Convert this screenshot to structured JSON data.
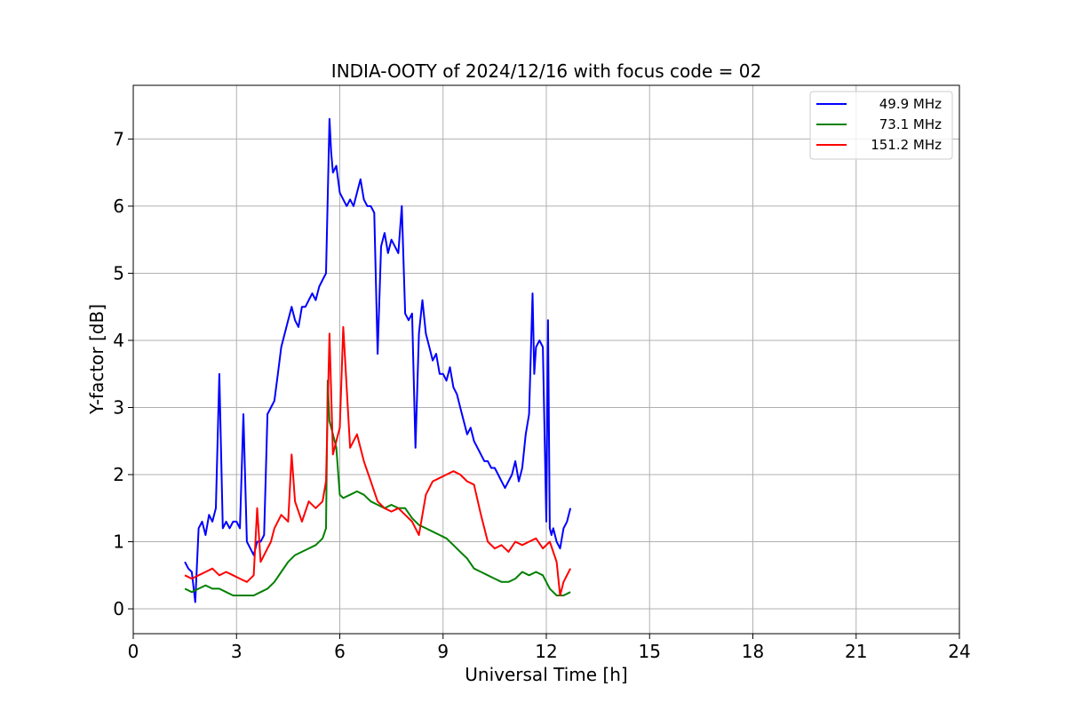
{
  "chart_data": {
    "type": "line",
    "title": "INDIA-OOTY of 2024/12/16 with focus code = 02",
    "xlabel": "Universal Time [h]",
    "ylabel": "Y-factor [dB]",
    "xlim": [
      0,
      24
    ],
    "ylim": [
      -0.37,
      7.8
    ],
    "xticks": [
      "0",
      "3",
      "6",
      "9",
      "12",
      "15",
      "18",
      "21",
      "24"
    ],
    "yticks": [
      "0",
      "1",
      "2",
      "3",
      "4",
      "5",
      "6",
      "7"
    ],
    "grid": true,
    "legend_position": "top-right",
    "series": [
      {
        "name": "49.9 MHz",
        "color": "#0000ff",
        "x": [
          1.5,
          1.6,
          1.7,
          1.8,
          1.9,
          2.0,
          2.1,
          2.2,
          2.3,
          2.4,
          2.5,
          2.6,
          2.7,
          2.8,
          2.9,
          3.0,
          3.1,
          3.2,
          3.3,
          3.4,
          3.5,
          3.6,
          3.7,
          3.8,
          3.9,
          4.0,
          4.1,
          4.2,
          4.3,
          4.4,
          4.5,
          4.6,
          4.7,
          4.8,
          4.9,
          5.0,
          5.1,
          5.2,
          5.3,
          5.4,
          5.5,
          5.6,
          5.7,
          5.75,
          5.8,
          5.9,
          6.0,
          6.1,
          6.2,
          6.3,
          6.4,
          6.5,
          6.6,
          6.7,
          6.8,
          6.9,
          7.0,
          7.1,
          7.2,
          7.3,
          7.4,
          7.5,
          7.6,
          7.7,
          7.8,
          7.9,
          8.0,
          8.1,
          8.2,
          8.3,
          8.4,
          8.5,
          8.6,
          8.7,
          8.8,
          8.9,
          9.0,
          9.1,
          9.2,
          9.3,
          9.4,
          9.5,
          9.6,
          9.7,
          9.8,
          9.9,
          10.0,
          10.1,
          10.2,
          10.3,
          10.4,
          10.5,
          10.6,
          10.7,
          10.8,
          10.9,
          11.0,
          11.1,
          11.2,
          11.3,
          11.4,
          11.5,
          11.6,
          11.65,
          11.7,
          11.8,
          11.9,
          12.0,
          12.05,
          12.1,
          12.15,
          12.2,
          12.3,
          12.4,
          12.5,
          12.6,
          12.7
        ],
        "y": [
          0.7,
          0.6,
          0.55,
          0.1,
          1.2,
          1.3,
          1.1,
          1.4,
          1.3,
          1.5,
          3.5,
          1.2,
          1.3,
          1.2,
          1.3,
          1.3,
          1.2,
          2.9,
          1.0,
          0.9,
          0.8,
          1.0,
          1.0,
          1.1,
          2.9,
          3.0,
          3.1,
          3.5,
          3.9,
          4.1,
          4.3,
          4.5,
          4.3,
          4.2,
          4.5,
          4.5,
          4.6,
          4.7,
          4.6,
          4.8,
          4.9,
          5.0,
          7.3,
          6.8,
          6.5,
          6.6,
          6.2,
          6.1,
          6.0,
          6.1,
          6.0,
          6.2,
          6.4,
          6.1,
          6.0,
          6.0,
          5.9,
          3.8,
          5.4,
          5.6,
          5.3,
          5.5,
          5.4,
          5.3,
          6.0,
          4.4,
          4.3,
          4.4,
          2.4,
          4.1,
          4.6,
          4.1,
          3.9,
          3.7,
          3.8,
          3.5,
          3.5,
          3.4,
          3.6,
          3.3,
          3.2,
          3.0,
          2.8,
          2.6,
          2.7,
          2.5,
          2.4,
          2.3,
          2.2,
          2.2,
          2.1,
          2.1,
          2.0,
          1.9,
          1.8,
          1.9,
          2.0,
          2.2,
          1.9,
          2.1,
          2.6,
          2.9,
          4.7,
          3.5,
          3.9,
          4.0,
          3.9,
          1.3,
          4.3,
          1.2,
          1.1,
          1.2,
          1.0,
          0.9,
          1.2,
          1.3,
          1.5
        ]
      },
      {
        "name": "73.1 MHz",
        "color": "#008000",
        "x": [
          1.5,
          1.7,
          1.9,
          2.1,
          2.3,
          2.5,
          2.7,
          2.9,
          3.1,
          3.3,
          3.5,
          3.7,
          3.9,
          4.1,
          4.3,
          4.5,
          4.7,
          4.9,
          5.1,
          5.3,
          5.5,
          5.6,
          5.65,
          5.7,
          5.8,
          5.9,
          6.0,
          6.1,
          6.3,
          6.5,
          6.7,
          6.9,
          7.1,
          7.3,
          7.5,
          7.7,
          7.9,
          8.1,
          8.3,
          8.5,
          8.7,
          8.9,
          9.1,
          9.3,
          9.5,
          9.7,
          9.9,
          10.1,
          10.3,
          10.5,
          10.7,
          10.9,
          11.1,
          11.3,
          11.5,
          11.7,
          11.9,
          12.1,
          12.3,
          12.5,
          12.7
        ],
        "y": [
          0.3,
          0.25,
          0.3,
          0.35,
          0.3,
          0.3,
          0.25,
          0.2,
          0.2,
          0.2,
          0.2,
          0.25,
          0.3,
          0.4,
          0.55,
          0.7,
          0.8,
          0.85,
          0.9,
          0.95,
          1.05,
          1.2,
          3.4,
          2.8,
          2.6,
          2.4,
          1.7,
          1.65,
          1.7,
          1.75,
          1.7,
          1.6,
          1.55,
          1.5,
          1.55,
          1.5,
          1.5,
          1.35,
          1.25,
          1.2,
          1.15,
          1.1,
          1.05,
          0.95,
          0.85,
          0.75,
          0.6,
          0.55,
          0.5,
          0.45,
          0.4,
          0.4,
          0.45,
          0.55,
          0.5,
          0.55,
          0.5,
          0.3,
          0.2,
          0.2,
          0.25
        ]
      },
      {
        "name": "151.2 MHz",
        "color": "#ff0000",
        "x": [
          1.5,
          1.7,
          1.9,
          2.1,
          2.3,
          2.5,
          2.7,
          2.9,
          3.1,
          3.3,
          3.5,
          3.6,
          3.7,
          3.9,
          4.0,
          4.1,
          4.3,
          4.5,
          4.6,
          4.7,
          4.9,
          5.1,
          5.3,
          5.5,
          5.6,
          5.7,
          5.8,
          5.9,
          6.0,
          6.1,
          6.3,
          6.5,
          6.7,
          6.9,
          7.1,
          7.3,
          7.5,
          7.7,
          7.9,
          8.1,
          8.3,
          8.5,
          8.7,
          8.9,
          9.1,
          9.3,
          9.5,
          9.7,
          9.9,
          10.1,
          10.3,
          10.5,
          10.7,
          10.9,
          11.1,
          11.3,
          11.5,
          11.7,
          11.9,
          12.1,
          12.3,
          12.4,
          12.5,
          12.7
        ],
        "y": [
          0.5,
          0.45,
          0.5,
          0.55,
          0.6,
          0.5,
          0.55,
          0.5,
          0.45,
          0.4,
          0.5,
          1.5,
          0.7,
          0.9,
          1.0,
          1.2,
          1.4,
          1.3,
          2.3,
          1.6,
          1.3,
          1.6,
          1.5,
          1.6,
          1.9,
          4.1,
          2.3,
          2.5,
          2.7,
          4.2,
          2.4,
          2.6,
          2.2,
          1.9,
          1.6,
          1.5,
          1.45,
          1.5,
          1.4,
          1.3,
          1.1,
          1.7,
          1.9,
          1.95,
          2.0,
          2.05,
          2.0,
          1.9,
          1.85,
          1.4,
          1.0,
          0.9,
          0.95,
          0.85,
          1.0,
          0.95,
          1.0,
          1.05,
          0.9,
          1.0,
          0.7,
          0.2,
          0.4,
          0.6
        ]
      }
    ]
  }
}
